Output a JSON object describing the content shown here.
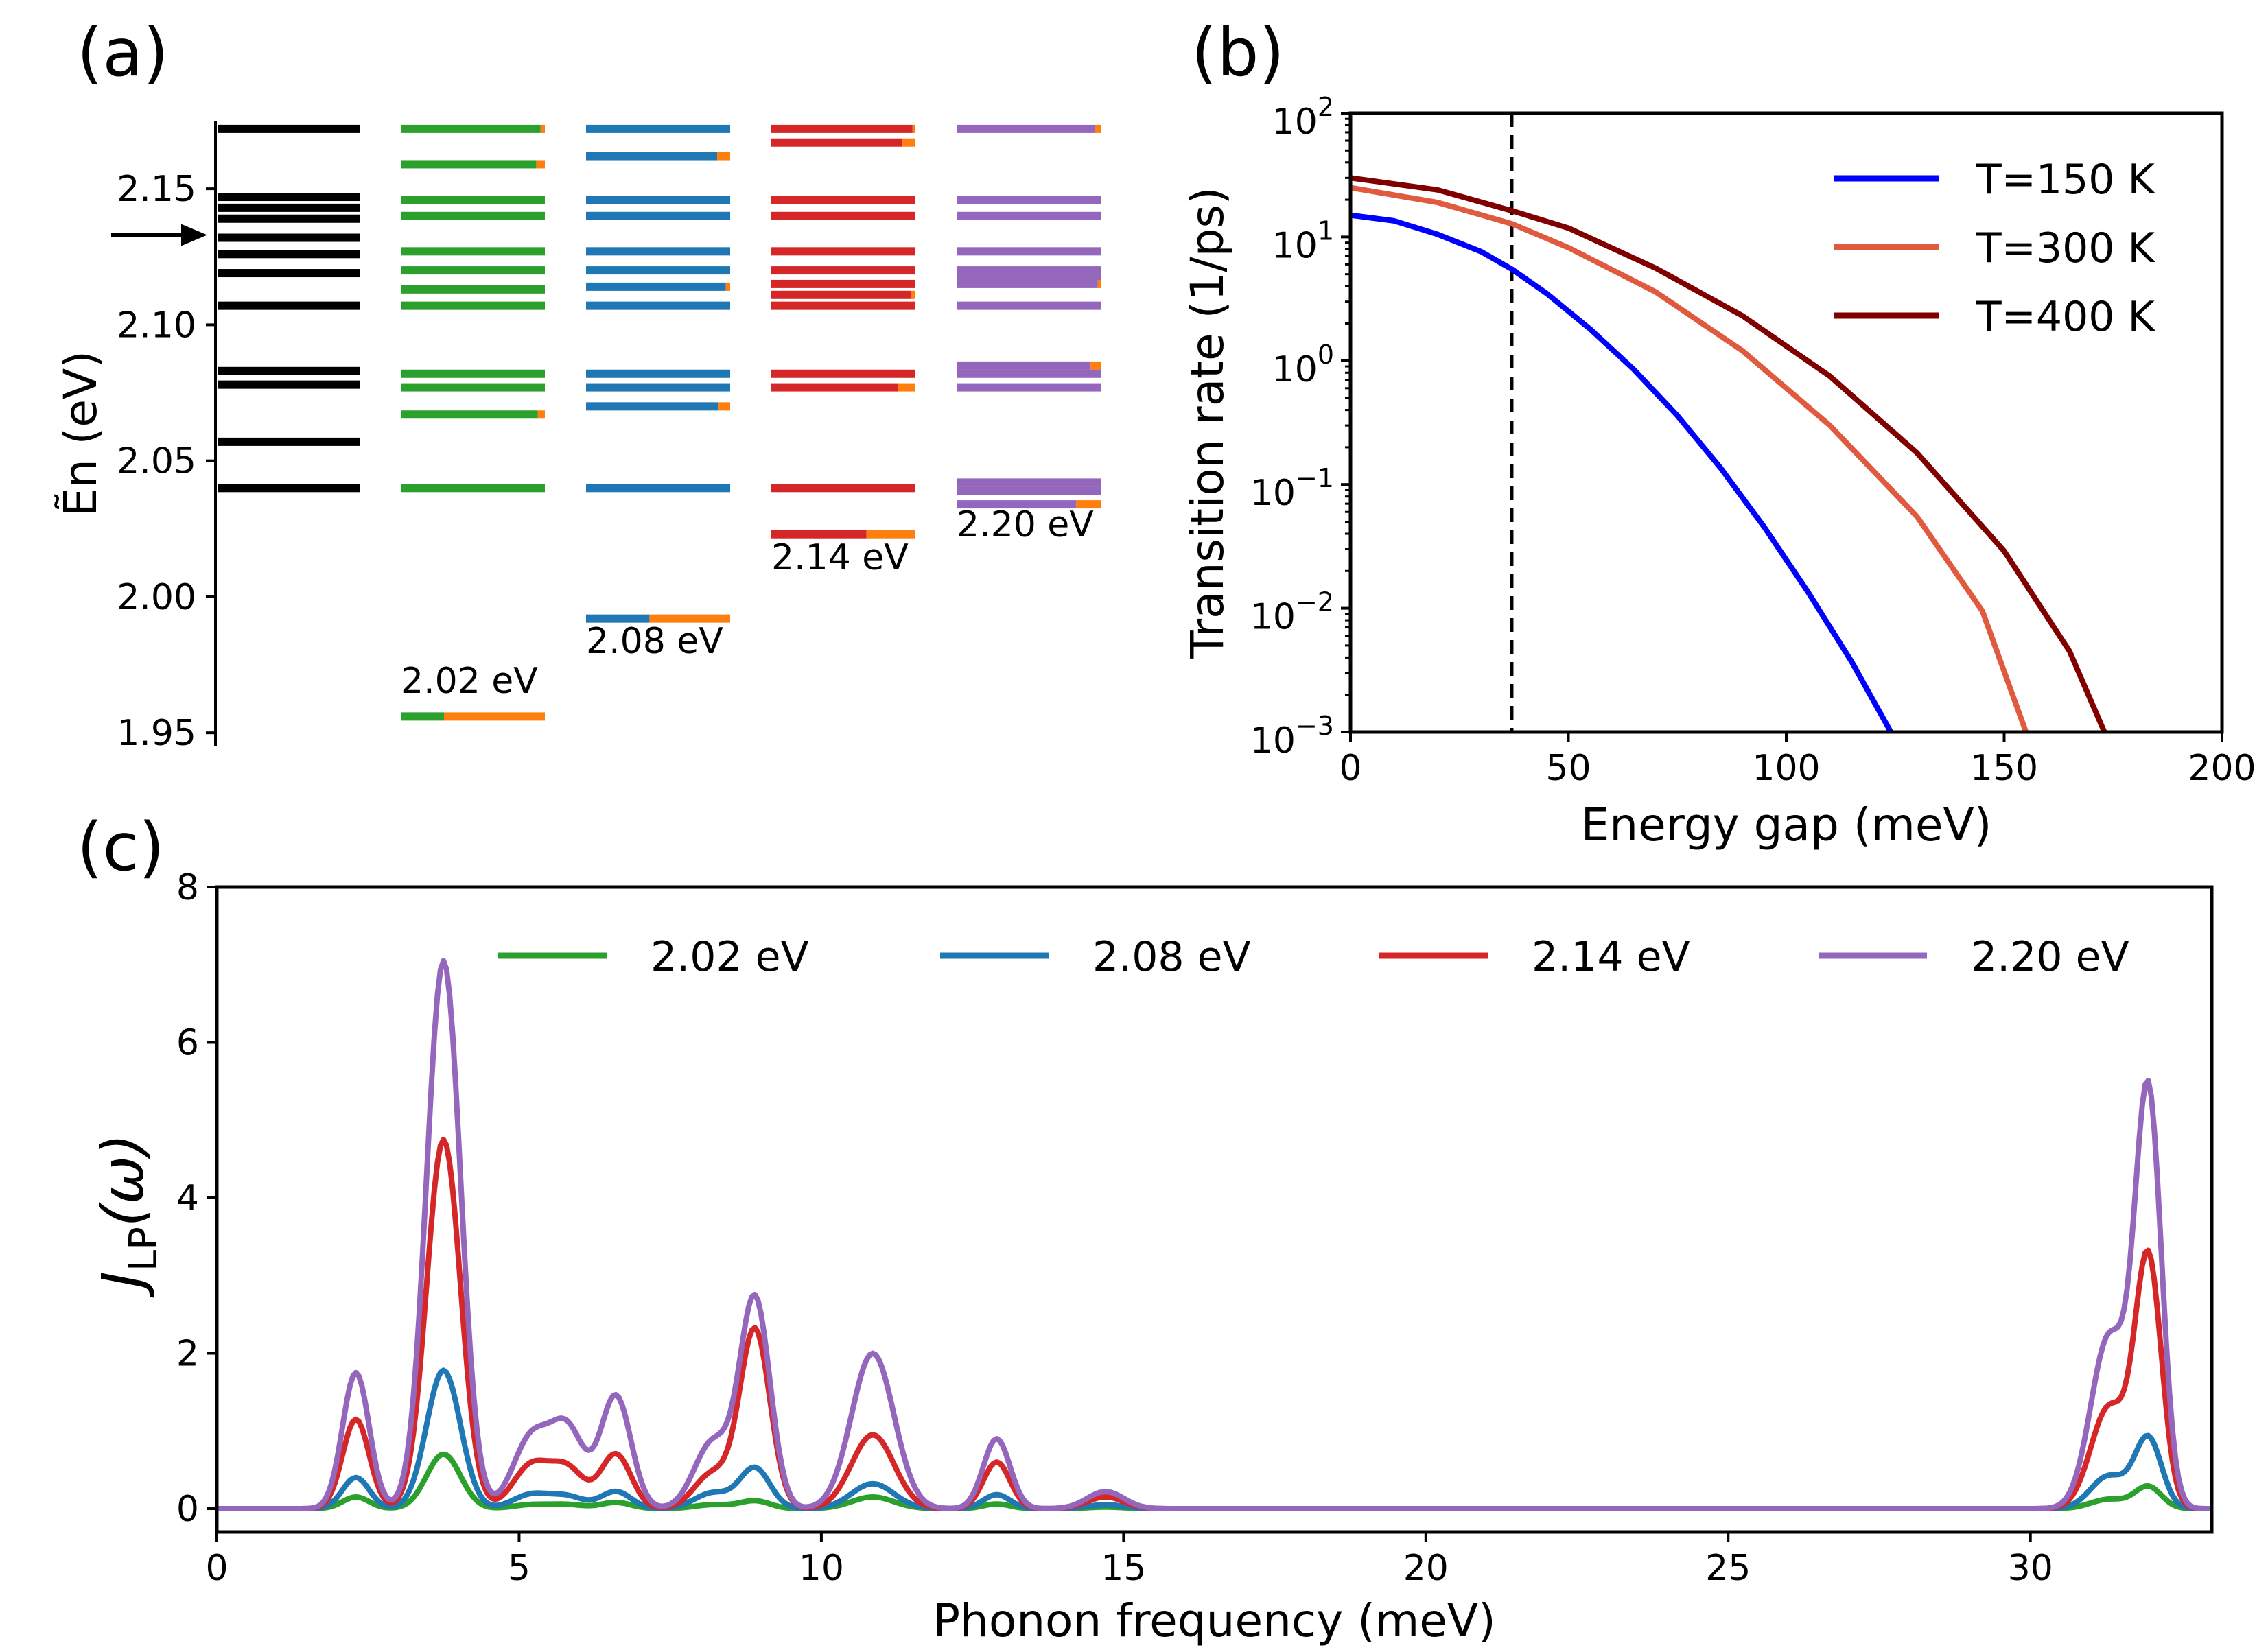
{
  "figure": {
    "panel_labels": [
      "(a)",
      "(b)",
      "(c)"
    ]
  },
  "colors": {
    "green": "#2ca02c",
    "blue": "#1f77b4",
    "red": "#d62728",
    "purple": "#9467bd",
    "orange": "#ff7f0e",
    "t150": "#0000ff",
    "t300": "#e05a40",
    "t400": "#800000",
    "black": "#000000"
  },
  "chart_data": [
    {
      "id": "a",
      "type": "energy-level-diagram",
      "ylabel": "Ẽn (eV)",
      "ylim": [
        1.945,
        2.175
      ],
      "yticks": [
        "1.95",
        "2.00",
        "2.05",
        "2.10",
        "2.15"
      ],
      "arrow_level": 2.133,
      "reference_levels": [
        2.172,
        2.147,
        2.143,
        2.139,
        2.132,
        2.126,
        2.119,
        2.107,
        2.083,
        2.078,
        2.057,
        2.04
      ],
      "series": [
        {
          "name": "2.02 eV",
          "color_key": "green",
          "levels": [
            2.172,
            2.159,
            2.146,
            2.14,
            2.127,
            2.12,
            2.113,
            2.107,
            2.082,
            2.077,
            2.067,
            2.04,
            1.956
          ],
          "orange_fraction": [
            0.03,
            0.06,
            0.0,
            0.0,
            0.0,
            0.0,
            0.0,
            0.0,
            0.0,
            0.0,
            0.05,
            0.0,
            0.7
          ]
        },
        {
          "name": "2.08 eV",
          "color_key": "blue",
          "levels": [
            2.172,
            2.162,
            2.146,
            2.14,
            2.127,
            2.12,
            2.114,
            2.107,
            2.082,
            2.077,
            2.07,
            2.04,
            1.992
          ],
          "orange_fraction": [
            0.0,
            0.09,
            0.0,
            0.0,
            0.0,
            0.0,
            0.03,
            0.0,
            0.0,
            0.0,
            0.08,
            0.0,
            0.56
          ]
        },
        {
          "name": "2.14 eV",
          "color_key": "red",
          "levels": [
            2.172,
            2.167,
            2.146,
            2.14,
            2.127,
            2.12,
            2.115,
            2.111,
            2.107,
            2.082,
            2.077,
            2.04,
            2.023
          ],
          "orange_fraction": [
            0.02,
            0.09,
            0.0,
            0.0,
            0.0,
            0.0,
            0.0,
            0.03,
            0.0,
            0.0,
            0.12,
            0.0,
            0.34
          ]
        },
        {
          "name": "2.20 eV",
          "color_key": "purple",
          "levels": [
            2.172,
            2.146,
            2.14,
            2.127,
            2.12,
            2.118,
            2.115,
            2.107,
            2.085,
            2.082,
            2.077,
            2.042,
            2.039,
            2.034
          ],
          "orange_fraction": [
            0.04,
            0.0,
            0.0,
            0.0,
            0.0,
            0.0,
            0.02,
            0.0,
            0.07,
            0.0,
            0.0,
            0.0,
            0.0,
            0.17
          ]
        }
      ],
      "series_labels": [
        "2.02 eV",
        "2.08 eV",
        "2.14 eV",
        "2.20 eV"
      ]
    },
    {
      "id": "b",
      "type": "line",
      "xlabel": "Energy gap (meV)",
      "ylabel": "Transition rate (1/ps)",
      "yscale": "log",
      "xlim": [
        0,
        200
      ],
      "ylim": [
        0.001,
        100
      ],
      "xticks": [
        "0",
        "50",
        "100",
        "150",
        "200"
      ],
      "ytick_exponents": [
        "2",
        "1",
        "0",
        "−1",
        "−2",
        "−3"
      ],
      "ytick_base": "10",
      "vline_x": 37,
      "legend_position": "top-right",
      "series": [
        {
          "name": "T=150 K",
          "color_key": "t150",
          "x": [
            0,
            10,
            20,
            30,
            37,
            45,
            55,
            65,
            75,
            85,
            95,
            105,
            115,
            124
          ],
          "y": [
            15.0,
            13.5,
            10.5,
            7.6,
            5.5,
            3.5,
            1.8,
            0.85,
            0.36,
            0.135,
            0.045,
            0.0135,
            0.0037,
            0.001
          ]
        },
        {
          "name": "T=300 K",
          "color_key": "t300",
          "x": [
            0,
            20,
            37,
            50,
            70,
            90,
            110,
            130,
            145,
            155
          ],
          "y": [
            25.0,
            19.0,
            12.8,
            8.2,
            3.6,
            1.2,
            0.3,
            0.055,
            0.0095,
            0.001
          ]
        },
        {
          "name": "T=400 K",
          "color_key": "t400",
          "x": [
            0,
            20,
            37,
            50,
            70,
            90,
            110,
            130,
            150,
            165,
            173
          ],
          "y": [
            30.0,
            24.0,
            16.3,
            11.8,
            5.6,
            2.3,
            0.75,
            0.18,
            0.029,
            0.0045,
            0.001
          ]
        }
      ]
    },
    {
      "id": "c",
      "type": "line",
      "xlabel": "Phonon frequency (meV)",
      "ylabel": "J_LP(ω)",
      "ylabel_main": "J",
      "ylabel_sub": "LP",
      "ylabel_arg": "(ω)",
      "xlim": [
        0,
        33
      ],
      "ylim": [
        -0.3,
        8
      ],
      "xticks": [
        "0",
        "5",
        "10",
        "15",
        "20",
        "25",
        "30"
      ],
      "yticks": [
        "0",
        "2",
        "4",
        "6",
        "8"
      ],
      "legend_position": "top",
      "peaks_meV": [
        2.3,
        3.75,
        5.2,
        5.8,
        6.6,
        8.2,
        8.9,
        10.85,
        12.9,
        14.7,
        31.3,
        31.95
      ],
      "series": [
        {
          "name": "2.02 eV",
          "color_key": "green",
          "peak_heights": [
            0.15,
            0.7,
            0.05,
            0.05,
            0.08,
            0.05,
            0.1,
            0.15,
            0.06,
            0.02,
            0.12,
            0.28
          ]
        },
        {
          "name": "2.08 eV",
          "color_key": "blue",
          "peak_heights": [
            0.4,
            1.78,
            0.18,
            0.15,
            0.22,
            0.2,
            0.52,
            0.32,
            0.18,
            0.05,
            0.42,
            0.9
          ]
        },
        {
          "name": "2.14 eV",
          "color_key": "red",
          "peak_heights": [
            1.15,
            4.75,
            0.55,
            0.5,
            0.7,
            0.45,
            2.3,
            0.95,
            0.6,
            0.15,
            1.3,
            3.2
          ]
        },
        {
          "name": "2.20 eV",
          "color_key": "purple",
          "peak_heights": [
            1.75,
            7.05,
            0.9,
            1.0,
            1.45,
            0.85,
            2.7,
            2.0,
            0.9,
            0.22,
            2.2,
            5.3
          ]
        }
      ]
    }
  ]
}
